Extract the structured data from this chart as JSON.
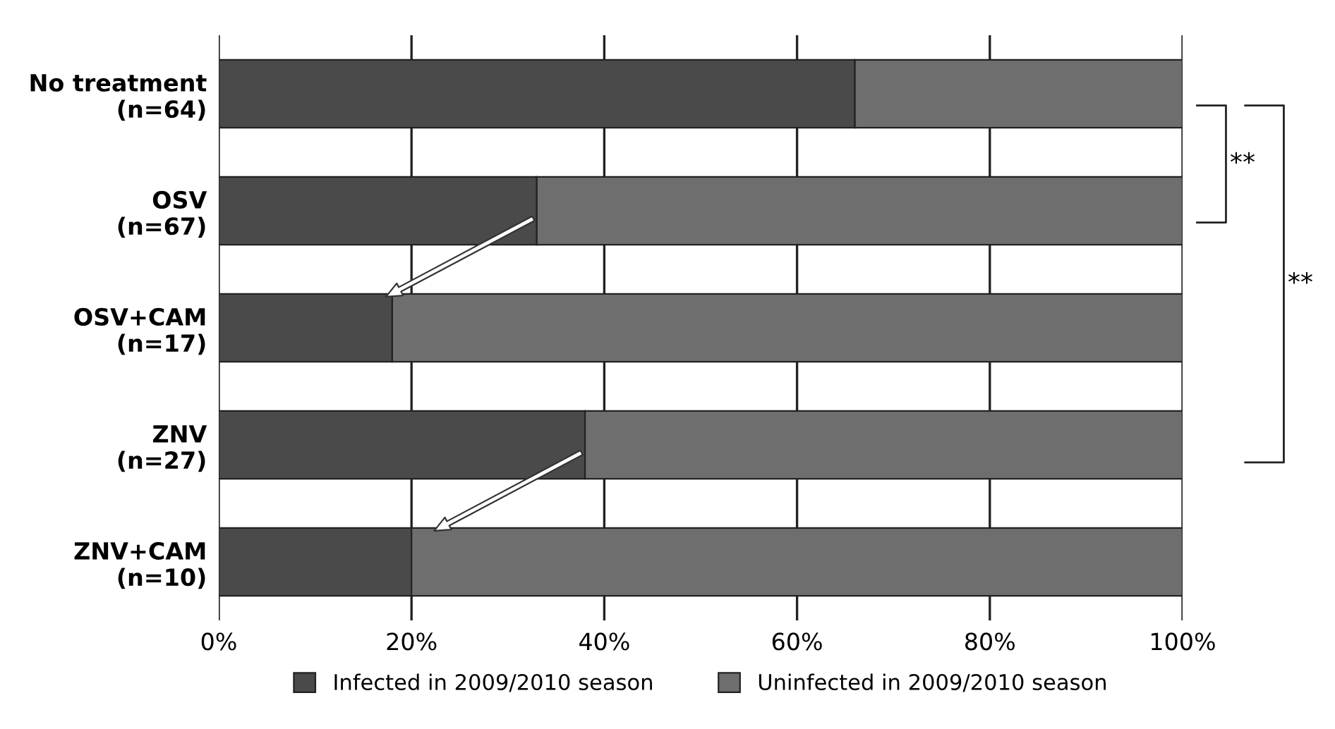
{
  "chart_data": {
    "type": "bar",
    "orientation": "horizontal",
    "stacked": true,
    "categories": [
      "No treatment\n(n=64)",
      "OSV\n(n=67)",
      "OSV+CAM\n(n=17)",
      "ZNV\n(n=27)",
      "ZNV+CAM\n(n=10)"
    ],
    "series": [
      {
        "name": "Infected in 2009/2010 season",
        "color": "#4a4a4a",
        "values": [
          66,
          33,
          18,
          38,
          20
        ]
      },
      {
        "name": "Uninfected in 2009/2010 season",
        "color": "#6e6e6e",
        "values": [
          34,
          67,
          82,
          62,
          80
        ]
      }
    ],
    "xlim": [
      0,
      100
    ],
    "xticks": [
      {
        "value": 0,
        "label": "0%"
      },
      {
        "value": 20,
        "label": "20%"
      },
      {
        "value": 40,
        "label": "40%"
      },
      {
        "value": 60,
        "label": "60%"
      },
      {
        "value": 80,
        "label": "80%"
      },
      {
        "value": 100,
        "label": "100%"
      }
    ],
    "grid": "x",
    "legend": "bottom",
    "annotations": [
      "**",
      "**"
    ]
  }
}
